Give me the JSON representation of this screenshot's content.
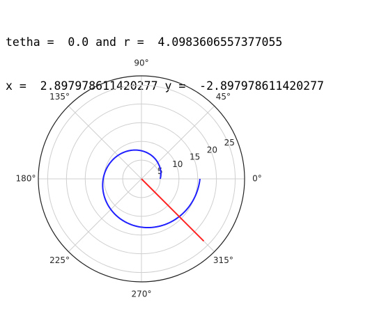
{
  "console": {
    "line1": "tetha =  0.0 and r =  4.0983606557377055",
    "line2": "x =  2.897978611420277 y =  -2.897978611420277"
  },
  "chart_data": {
    "type": "polar",
    "angle_ticks": [
      "0°",
      "45°",
      "90°",
      "135°",
      "180°",
      "225°",
      "270°",
      "315°"
    ],
    "radial_ticks": [
      "5",
      "10",
      "15",
      "20",
      "25"
    ],
    "rlim": [
      0,
      27.5
    ],
    "grid": true,
    "series": [
      {
        "kind": "spiral",
        "color": "#1f1fff",
        "theta_deg": [
          0,
          20,
          40,
          60,
          80,
          100,
          120,
          140,
          160,
          180,
          200,
          220,
          240,
          260,
          280,
          300,
          320,
          340,
          360
        ],
        "r": [
          5.0,
          5.5,
          6.0,
          6.6,
          7.2,
          7.8,
          8.4,
          9.0,
          9.6,
          10.2,
          10.8,
          11.4,
          12.0,
          12.6,
          13.2,
          13.8,
          14.4,
          15.0,
          15.6
        ]
      },
      {
        "kind": "line",
        "color": "#ff2020",
        "theta_deg": [
          315,
          315
        ],
        "r": [
          0,
          23.5
        ]
      }
    ]
  }
}
